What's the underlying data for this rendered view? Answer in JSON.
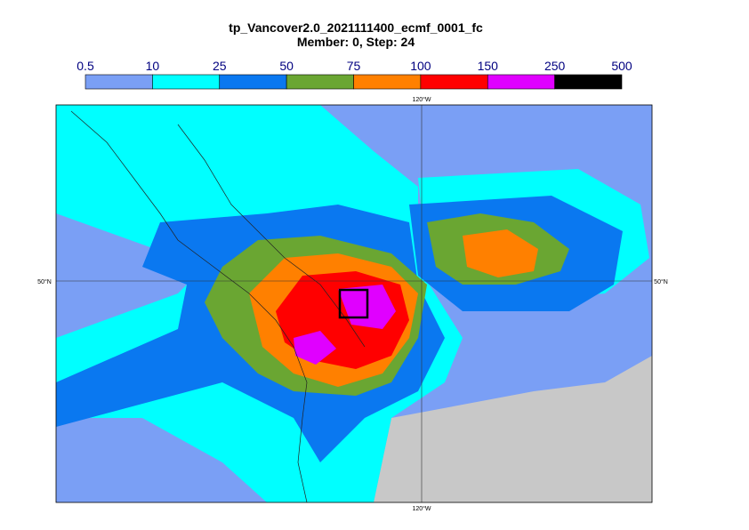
{
  "title": "tp_Vancover2.0_2021111400_ecmf_0001_fc",
  "subtitle": "Member: 0, Step: 24",
  "colorbar": {
    "ticks": [
      0.5,
      10,
      25,
      50,
      75,
      100,
      150,
      250,
      500
    ],
    "colors": [
      "#7a9ff5",
      "#00ffff",
      "#0a78f0",
      "#6aa632",
      "#ff8000",
      "#ff0000",
      "#e000ff",
      "#000000"
    ]
  },
  "map": {
    "top_label": "120°W",
    "bottom_label": "120°W",
    "left_label": "50°N",
    "right_label": "50°N",
    "land_color": "#c8c8c8"
  }
}
